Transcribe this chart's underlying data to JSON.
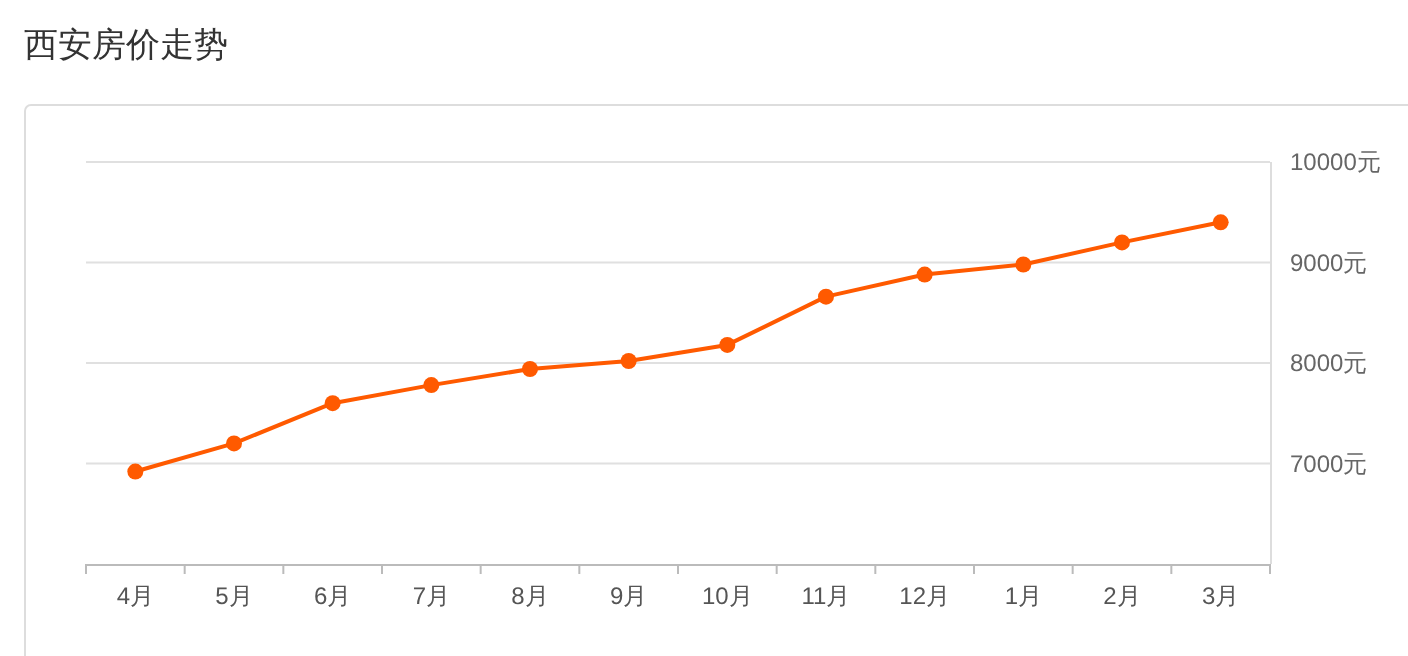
{
  "chart_data": {
    "type": "line",
    "title": "西安房价走势",
    "categories": [
      "4月",
      "5月",
      "6月",
      "7月",
      "8月",
      "9月",
      "10月",
      "11月",
      "12月",
      "1月",
      "2月",
      "3月"
    ],
    "series": [
      {
        "color": "#ff5a00",
        "values": [
          6920,
          7200,
          7600,
          7780,
          7940,
          8020,
          8180,
          8660,
          8880,
          8980,
          9200,
          9400
        ]
      }
    ],
    "ylim": [
      6000,
      10000
    ],
    "yticks": [
      {
        "value": 7000,
        "label": "7000元"
      },
      {
        "value": 8000,
        "label": "8000元"
      },
      {
        "value": 9000,
        "label": "9000元"
      },
      {
        "value": 10000,
        "label": "10000元"
      }
    ],
    "grid": "y",
    "marker": "circle"
  }
}
